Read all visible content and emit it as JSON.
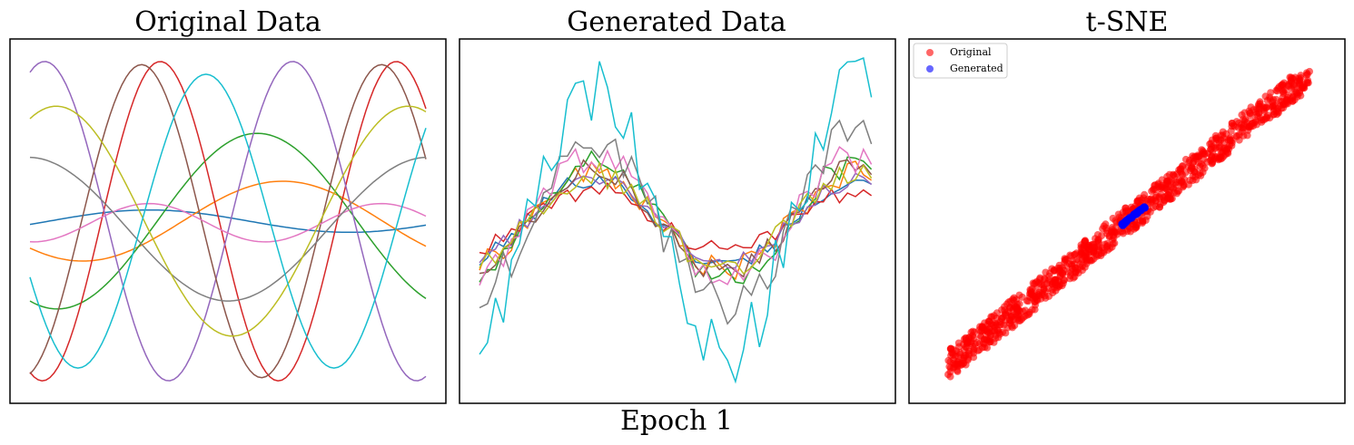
{
  "figure": {
    "suptitle": "Epoch 1"
  },
  "colors": {
    "palette": [
      "#1f77b4",
      "#ff7f0e",
      "#2ca02c",
      "#d62728",
      "#9467bd",
      "#8c564b",
      "#e377c2",
      "#7f7f7f",
      "#bcbd22",
      "#17becf"
    ],
    "original_points": "#ff0000",
    "generated_points": "#0000ff"
  },
  "chart_data": [
    {
      "type": "line",
      "title": "Original Data",
      "xlim": [
        0,
        99
      ],
      "ylim": [
        -1.05,
        1.05
      ],
      "axis_ticks": "hidden",
      "series": [
        {
          "color": "#1f77b4",
          "amp": 0.07,
          "period": 100,
          "phase": -0.3,
          "offset": 0.0
        },
        {
          "color": "#ff7f0e",
          "amp": 0.25,
          "period": 100,
          "phase": -2.4,
          "offset": 0.0
        },
        {
          "color": "#2ca02c",
          "amp": 0.55,
          "period": 100,
          "phase": -2.0,
          "offset": 0.0
        },
        {
          "color": "#d62728",
          "amp": 1.0,
          "period": 59,
          "phase": -1.9,
          "offset": 0.0
        },
        {
          "color": "#9467bd",
          "amp": 1.0,
          "period": 62,
          "phase": 1.2,
          "offset": 0.0
        },
        {
          "color": "#8c564b",
          "amp": 0.98,
          "period": 60,
          "phase": -1.35,
          "offset": 0.0
        },
        {
          "color": "#e377c2",
          "amp": 0.12,
          "period": 58,
          "phase": -1.65,
          "offset": -0.01
        },
        {
          "color": "#7f7f7f",
          "amp": 0.45,
          "period": 100,
          "phase": 1.6,
          "offset": -0.05
        },
        {
          "color": "#bcbd22",
          "amp": 0.72,
          "period": 88,
          "phase": 1.1,
          "offset": 0.0
        },
        {
          "color": "#17becf",
          "amp": 0.92,
          "period": 64,
          "phase": -2.75,
          "offset": 0.0
        }
      ]
    },
    {
      "type": "line",
      "title": "Generated Data",
      "xlim": [
        0,
        99
      ],
      "ylim": [
        -1.05,
        1.05
      ],
      "axis_ticks": "hidden",
      "series": [
        {
          "color": "#1f77b4",
          "scale": 0.65,
          "noise": 0.02
        },
        {
          "color": "#ff7f0e",
          "scale": 0.72,
          "noise": 0.025
        },
        {
          "color": "#2ca02c",
          "scale": 0.9,
          "noise": 0.03
        },
        {
          "color": "#d62728",
          "scale": 0.45,
          "noise": 0.02
        },
        {
          "color": "#9467bd",
          "scale": 0.62,
          "noise": 0.02
        },
        {
          "color": "#8c564b",
          "scale": 0.78,
          "noise": 0.025
        },
        {
          "color": "#e377c2",
          "scale": 0.95,
          "noise": 0.035
        },
        {
          "color": "#7f7f7f",
          "scale": 1.28,
          "noise": 0.05
        },
        {
          "color": "#bcbd22",
          "scale": 0.7,
          "noise": 0.025
        },
        {
          "color": "#17becf",
          "scale": 2.0,
          "noise": 0.07
        }
      ]
    },
    {
      "type": "scatter",
      "title": "t-SNE",
      "xlim": [
        -1.05,
        1.05
      ],
      "ylim": [
        -1.05,
        1.05
      ],
      "axis_ticks": "hidden",
      "legend": {
        "placement": "upper-left",
        "entries": [
          "Original",
          "Generated"
        ]
      },
      "series": [
        {
          "name": "Original",
          "color": "#ff0000",
          "alpha": 0.6,
          "n": 900,
          "x_range": [
            -0.95,
            0.97
          ],
          "slope": 0.95,
          "spread": 0.09
        },
        {
          "name": "Generated",
          "color": "#0000ff",
          "alpha": 0.6,
          "n": 60,
          "x_range": [
            -0.03,
            0.1
          ],
          "slope": 0.95,
          "spread": 0.01
        }
      ]
    }
  ]
}
